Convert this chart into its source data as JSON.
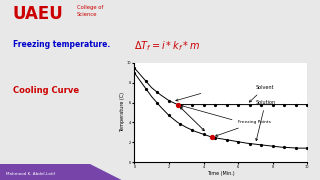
{
  "bg_color": "#e8e8e8",
  "uaeu_text": "UAEU",
  "uaeu_color": "#cc0000",
  "college_text": "College of\nScience",
  "college_color": "#cc0000",
  "freezing_temp_text": "Freezing temperature.",
  "freezing_temp_color": "#0000cc",
  "formula_text": "$\\Delta T_f = i * k_f * m$",
  "formula_color": "#cc0000",
  "cooling_curve_text": "Cooling Curve",
  "cooling_curve_color": "#cc0000",
  "xlabel": "Time (Min.)",
  "ylabel": "Temperature (C)",
  "solvent_label": "Solvent",
  "solution_label": "Solution",
  "freezing_points_label": "Freezing Points",
  "footer_text": "Mahmood K. Abdel-Latif",
  "footer_purple": "#7744aa",
  "footer_dark": "#111133",
  "plot_xlim": [
    0,
    10
  ],
  "plot_ylim": [
    0,
    10
  ],
  "solvent_drop_t": [
    0,
    0.5,
    1.0,
    1.5,
    2.0,
    2.5
  ],
  "solvent_drop_T": [
    9.5,
    8.5,
    7.5,
    6.8,
    6.2,
    5.8
  ],
  "solvent_flat_t": [
    2.5,
    3.5,
    4.5,
    5.5,
    6.5,
    7.5,
    8.5,
    9.5,
    10.0
  ],
  "solvent_flat_T": [
    5.8,
    5.8,
    5.8,
    5.8,
    5.8,
    5.8,
    5.8,
    5.8,
    5.8
  ],
  "solution_drop_t": [
    0,
    0.5,
    1.0,
    1.5,
    2.0,
    2.5,
    3.0,
    3.5,
    4.0,
    4.5
  ],
  "solution_drop_T": [
    9.0,
    7.8,
    6.6,
    5.6,
    4.7,
    4.0,
    3.5,
    3.1,
    2.8,
    2.5
  ],
  "solution_flat_t": [
    4.5,
    5.5,
    6.5,
    7.5,
    8.5,
    9.5,
    10.0
  ],
  "solution_flat_T": [
    2.5,
    2.2,
    1.9,
    1.7,
    1.5,
    1.4,
    1.4
  ],
  "red_dot_solvent_t": 2.5,
  "red_dot_solvent_T": 5.8,
  "red_dot_solution_t": 4.5,
  "red_dot_solution_T": 2.5
}
